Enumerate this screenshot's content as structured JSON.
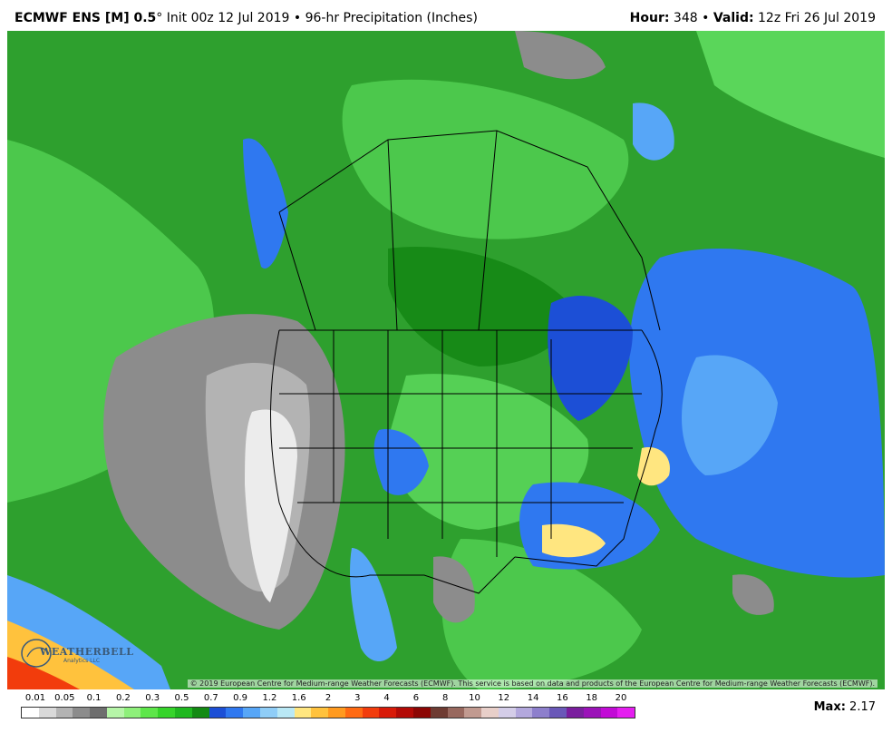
{
  "header": {
    "model": "ECMWF ENS [M] 0.5",
    "degree": "°",
    "init": "Init 00z 12 Jul 2019",
    "separator": "•",
    "product": "96-hr Precipitation (Inches)",
    "hour_label": "Hour:",
    "hour_value": "348",
    "valid_label": "Valid:",
    "valid_value": "12z Fri 26 Jul 2019"
  },
  "map": {
    "credit": "© 2019 European Centre for Medium-range Weather Forecasts (ECMWF). This service is based on data and products of the European Centre for Medium-range Weather Forecasts (ECMWF).",
    "logo_text": "WEATHERBELL",
    "logo_sub": "Analytics LLC"
  },
  "legend": {
    "labels": [
      "0.01",
      "0.05",
      "0.1",
      "0.2",
      "0.3",
      "0.5",
      "0.7",
      "0.9",
      "1.2",
      "1.6",
      "2",
      "3",
      "4",
      "6",
      "8",
      "10",
      "12",
      "14",
      "16",
      "18",
      "20"
    ],
    "colors": [
      "#ffffff",
      "#d9d9d9",
      "#b3b3b3",
      "#8c8c8c",
      "#6e6e6e",
      "#b6f5a8",
      "#8ef07a",
      "#5ee64a",
      "#36d42a",
      "#1fb81f",
      "#138a13",
      "#1c4fd6",
      "#2f78f0",
      "#57a6f7",
      "#8fcdf7",
      "#b9e8f5",
      "#ffe680",
      "#ffc23d",
      "#ff9a1f",
      "#ff6a12",
      "#f23c0c",
      "#d81a08",
      "#b30a06",
      "#8c0604",
      "#6e3b32",
      "#98685e",
      "#c19a90",
      "#e8cfc9",
      "#d4cde8",
      "#b3a8dd",
      "#8d7fcc",
      "#6a58b8",
      "#7a1e9e",
      "#9b12b8",
      "#c20ad6",
      "#e51ef0"
    ],
    "max_label": "Max:",
    "max_value": "2.17"
  }
}
